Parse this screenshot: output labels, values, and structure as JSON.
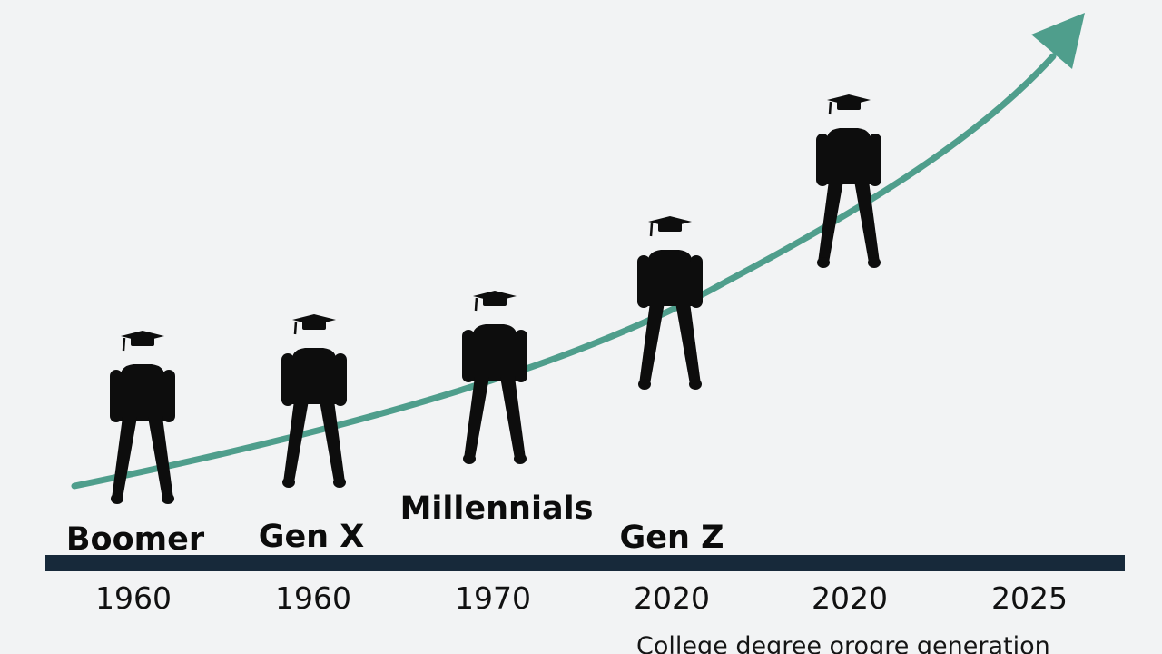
{
  "chart_data": {
    "type": "line",
    "generations": [
      "Boomer",
      "Gen X",
      "Millennials",
      "Gen Z"
    ],
    "x_tick_labels": [
      "1960",
      "1960",
      "1970",
      "2020",
      "2020",
      "2025"
    ],
    "caption": "College degree orogre generation",
    "figure_count": 5,
    "trend": "rising",
    "colors": {
      "background": "#f2f3f4",
      "trend_line": "#4f9e8c",
      "axis_bar": "#17293a",
      "figures": "#0d0d0d",
      "text": "#0c0c0c"
    },
    "icons": [
      "graduate-figure-icon",
      "arrow-head-icon"
    ]
  }
}
